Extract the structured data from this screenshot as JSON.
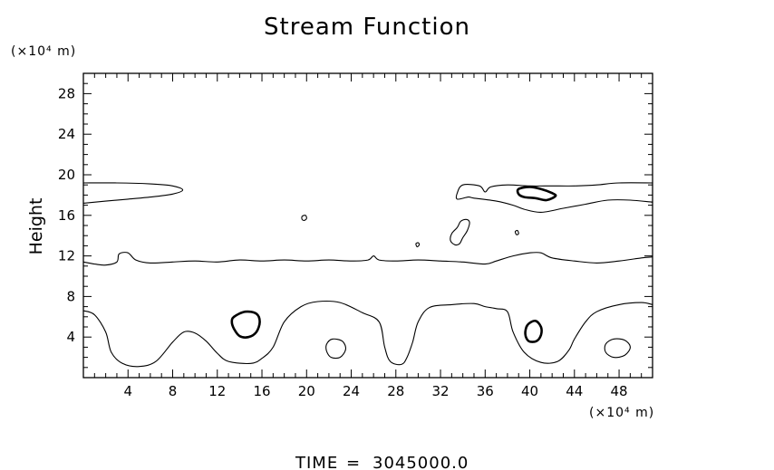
{
  "chart_data": {
    "type": "contour",
    "title": "Stream Function",
    "xlabel": "",
    "ylabel": "Height",
    "x_unit_label": "(×10⁴ m)",
    "y_unit_label": "(×10⁴ m)",
    "xlim": [
      0,
      51
    ],
    "ylim": [
      0,
      30
    ],
    "x_ticks": [
      4,
      8,
      12,
      16,
      20,
      24,
      28,
      32,
      36,
      40,
      44,
      48
    ],
    "y_ticks": [
      4,
      8,
      12,
      16,
      20,
      24,
      28
    ],
    "x_minor_step": 1,
    "y_minor_step": 1,
    "grid": false,
    "contours": [
      {
        "name": "",
        "closed": false,
        "weight": "thin",
        "points": [
          [
            0,
            19.2
          ],
          [
            3,
            19.2
          ],
          [
            6,
            19.1
          ],
          [
            8,
            18.9
          ],
          [
            8.9,
            18.5
          ],
          [
            8,
            18.1
          ],
          [
            6,
            17.8
          ],
          [
            4,
            17.6
          ],
          [
            2,
            17.4
          ],
          [
            0,
            17.2
          ]
        ]
      },
      {
        "name": "",
        "closed": false,
        "weight": "thin",
        "points": [
          [
            0,
            11.4
          ],
          [
            1,
            11.2
          ],
          [
            2,
            11.1
          ],
          [
            3,
            11.4
          ],
          [
            3.2,
            12.2
          ],
          [
            4,
            12.3
          ],
          [
            4.7,
            11.6
          ],
          [
            6,
            11.3
          ],
          [
            8,
            11.4
          ],
          [
            10,
            11.5
          ],
          [
            12,
            11.4
          ],
          [
            14,
            11.6
          ],
          [
            16,
            11.5
          ],
          [
            18,
            11.6
          ],
          [
            20,
            11.5
          ],
          [
            22,
            11.6
          ],
          [
            24,
            11.5
          ],
          [
            25.5,
            11.6
          ],
          [
            26,
            12.0
          ],
          [
            26.5,
            11.6
          ],
          [
            28,
            11.5
          ],
          [
            30,
            11.6
          ],
          [
            32,
            11.5
          ],
          [
            34,
            11.4
          ],
          [
            36,
            11.2
          ],
          [
            37,
            11.5
          ],
          [
            38.5,
            12.0
          ],
          [
            40,
            12.3
          ],
          [
            41,
            12.3
          ],
          [
            42,
            11.8
          ],
          [
            44,
            11.5
          ],
          [
            46,
            11.3
          ],
          [
            48,
            11.5
          ],
          [
            50,
            11.8
          ],
          [
            51,
            11.9
          ]
        ]
      },
      {
        "name": "",
        "closed": false,
        "weight": "thin",
        "points": [
          [
            0,
            6.6
          ],
          [
            1,
            6.2
          ],
          [
            2,
            4.5
          ],
          [
            2.5,
            2.5
          ],
          [
            3.5,
            1.4
          ],
          [
            5,
            1.1
          ],
          [
            6.5,
            1.6
          ],
          [
            8,
            3.5
          ],
          [
            9,
            4.5
          ],
          [
            10,
            4.4
          ],
          [
            11,
            3.6
          ],
          [
            12,
            2.4
          ],
          [
            13,
            1.6
          ],
          [
            15,
            1.4
          ],
          [
            16,
            1.9
          ],
          [
            17,
            3.0
          ],
          [
            18,
            5.5
          ],
          [
            19.5,
            7.0
          ],
          [
            21,
            7.5
          ],
          [
            23,
            7.4
          ],
          [
            25,
            6.4
          ],
          [
            26.5,
            5.5
          ],
          [
            27,
            3.0
          ],
          [
            27.5,
            1.6
          ],
          [
            28.5,
            1.3
          ],
          [
            29,
            2.0
          ],
          [
            29.5,
            3.5
          ],
          [
            30,
            5.5
          ],
          [
            31,
            6.9
          ],
          [
            33,
            7.2
          ],
          [
            35,
            7.3
          ],
          [
            36,
            7.0
          ],
          [
            37,
            6.8
          ],
          [
            38,
            6.5
          ],
          [
            38.5,
            4.5
          ],
          [
            39.5,
            2.5
          ],
          [
            41,
            1.5
          ],
          [
            42.5,
            1.6
          ],
          [
            43.5,
            2.7
          ],
          [
            44,
            3.8
          ],
          [
            45,
            5.5
          ],
          [
            46,
            6.5
          ],
          [
            48,
            7.2
          ],
          [
            50,
            7.4
          ],
          [
            51,
            7.2
          ]
        ]
      },
      {
        "name": "",
        "closed": false,
        "weight": "thin",
        "points": [
          [
            51,
            19.2
          ],
          [
            48,
            19.2
          ],
          [
            46,
            19.0
          ],
          [
            44,
            18.9
          ],
          [
            42,
            18.9
          ],
          [
            40,
            18.9
          ],
          [
            38,
            19.0
          ],
          [
            36.5,
            18.8
          ],
          [
            36,
            18.3
          ],
          [
            35.5,
            18.9
          ],
          [
            34,
            19.0
          ],
          [
            33.5,
            18.2
          ],
          [
            33.5,
            17.6
          ],
          [
            34.5,
            17.8
          ],
          [
            35,
            17.7
          ],
          [
            37,
            17.4
          ],
          [
            38.5,
            17.0
          ],
          [
            39.5,
            16.6
          ],
          [
            41,
            16.3
          ],
          [
            43,
            16.7
          ],
          [
            45,
            17.1
          ],
          [
            47,
            17.5
          ],
          [
            49,
            17.5
          ],
          [
            51,
            17.3
          ]
        ]
      },
      {
        "name": "",
        "closed": true,
        "weight": "thick",
        "points": [
          [
            39,
            18.6
          ],
          [
            40,
            18.8
          ],
          [
            41,
            18.6
          ],
          [
            42,
            18.2
          ],
          [
            42.3,
            17.9
          ],
          [
            41.5,
            17.5
          ],
          [
            40.5,
            17.7
          ],
          [
            39.5,
            17.8
          ],
          [
            39,
            18.1
          ]
        ]
      },
      {
        "name": "",
        "closed": true,
        "weight": "thin",
        "points": [
          [
            33,
            14.2
          ],
          [
            33.5,
            14.8
          ],
          [
            33.8,
            15.4
          ],
          [
            34.3,
            15.6
          ],
          [
            34.6,
            15.3
          ],
          [
            34.4,
            14.5
          ],
          [
            34,
            13.8
          ],
          [
            33.7,
            13.2
          ],
          [
            33.3,
            13.1
          ],
          [
            32.9,
            13.5
          ]
        ]
      },
      {
        "name": "",
        "closed": true,
        "weight": "thin",
        "points": [
          [
            19.6,
            15.9
          ],
          [
            19.9,
            16.0
          ],
          [
            20,
            15.7
          ],
          [
            19.8,
            15.5
          ],
          [
            19.6,
            15.6
          ]
        ]
      },
      {
        "name": "",
        "closed": true,
        "weight": "thin",
        "points": [
          [
            29.8,
            13.2
          ],
          [
            30,
            13.3
          ],
          [
            30.1,
            13.1
          ],
          [
            29.9,
            12.9
          ]
        ]
      },
      {
        "name": "",
        "closed": true,
        "weight": "thin",
        "points": [
          [
            38.7,
            14.4
          ],
          [
            38.9,
            14.5
          ],
          [
            39,
            14.2
          ],
          [
            38.8,
            14.1
          ]
        ]
      },
      {
        "name": "",
        "closed": true,
        "weight": "thick",
        "points": [
          [
            13.5,
            6.0
          ],
          [
            14.5,
            6.5
          ],
          [
            15.5,
            6.3
          ],
          [
            15.8,
            5.5
          ],
          [
            15.5,
            4.5
          ],
          [
            14.8,
            4.0
          ],
          [
            14,
            4.1
          ],
          [
            13.5,
            4.8
          ],
          [
            13.3,
            5.5
          ]
        ]
      },
      {
        "name": "",
        "closed": true,
        "weight": "thin",
        "points": [
          [
            21.8,
            3.3
          ],
          [
            22.3,
            3.8
          ],
          [
            23.2,
            3.6
          ],
          [
            23.5,
            2.8
          ],
          [
            23,
            2.0
          ],
          [
            22.2,
            2.0
          ],
          [
            21.8,
            2.6
          ]
        ]
      },
      {
        "name": "",
        "closed": true,
        "weight": "thick",
        "points": [
          [
            39.8,
            5.2
          ],
          [
            40.5,
            5.6
          ],
          [
            41,
            5.0
          ],
          [
            41,
            4.2
          ],
          [
            40.6,
            3.6
          ],
          [
            39.9,
            3.6
          ],
          [
            39.6,
            4.3
          ]
        ]
      },
      {
        "name": "",
        "closed": true,
        "weight": "thin",
        "points": [
          [
            46.8,
            3.3
          ],
          [
            47.5,
            3.8
          ],
          [
            48.5,
            3.7
          ],
          [
            49,
            3.0
          ],
          [
            48.5,
            2.2
          ],
          [
            47.5,
            2.0
          ],
          [
            46.8,
            2.5
          ]
        ]
      }
    ]
  },
  "footer": {
    "time_label": "TIME",
    "equals": "=",
    "time_value": "3045000.0"
  }
}
